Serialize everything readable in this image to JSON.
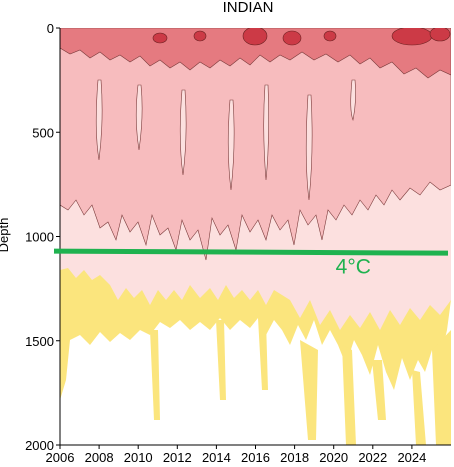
{
  "chart_data": {
    "type": "heatmap",
    "title": "INDIAN",
    "ylabel": "Depth",
    "xlabel": "",
    "xlim": [
      2006,
      2026
    ],
    "ylim": [
      0,
      2000
    ],
    "y_inverted": true,
    "x_ticks": [
      2006,
      2008,
      2010,
      2012,
      2014,
      2016,
      2018,
      2020,
      2022,
      2024
    ],
    "y_ticks": [
      0,
      500,
      1000,
      1500,
      2000
    ],
    "grid": false,
    "colors": {
      "strong_warm": "#cc3a46",
      "warm": "#e57a80",
      "mild_warm": "#f7bcbe",
      "weak_warm": "#fce0df",
      "weak_cool": "#fbe57d",
      "neutral": "#ffffff",
      "reference_line": "#1fb24f"
    },
    "depth_zones": [
      {
        "class": "strong_warm",
        "top": 0,
        "bottom": 60
      },
      {
        "class": "warm",
        "top": 0,
        "bottom": 150
      },
      {
        "class": "mild_warm",
        "top": 0,
        "bottom": 800
      },
      {
        "class": "weak_warm",
        "top": 700,
        "bottom": 1000
      },
      {
        "class": "weak_cool",
        "top": 900,
        "bottom": 1600
      }
    ],
    "reference_line": {
      "label": "4°C",
      "points": [
        [
          2006,
          1070
        ],
        [
          2026,
          1080
        ]
      ]
    }
  }
}
